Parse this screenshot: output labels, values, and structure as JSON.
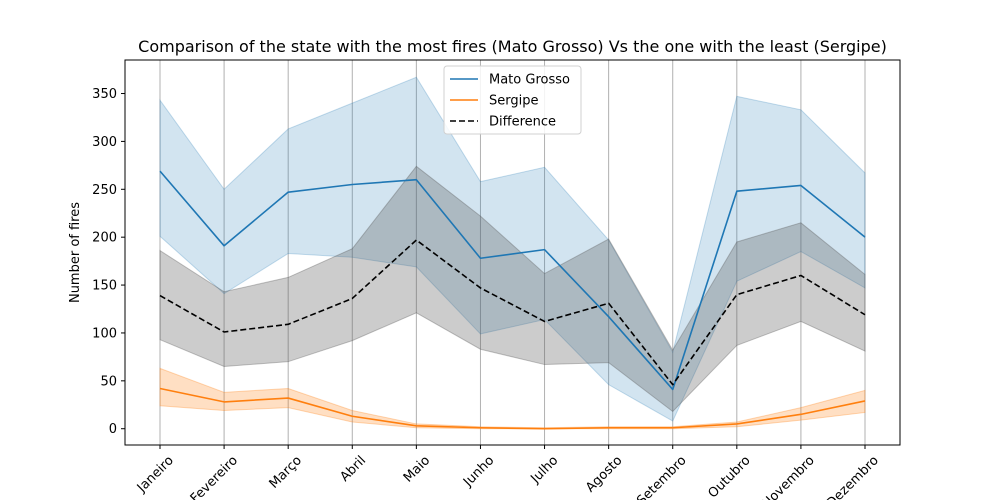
{
  "chart_data": {
    "type": "line",
    "title": "Comparison of the state with the most fires (Mato Grosso) Vs the one with the least (Sergipe)",
    "xlabel": "",
    "ylabel": "Number of fires",
    "ylim": [
      -17,
      385
    ],
    "yticks": [
      0,
      50,
      100,
      150,
      200,
      250,
      300,
      350
    ],
    "grid": "vertical",
    "legend_position": "top-center",
    "categories": [
      "Janeiro",
      "Fevereiro",
      "Março",
      "Abril",
      "Maio",
      "Junho",
      "Julho",
      "Agosto",
      "Setembro",
      "Outubro",
      "Novembro",
      "Dezembro"
    ],
    "series": [
      {
        "name": "Mato Grosso",
        "color": "#1f77b4",
        "style": "solid",
        "values": [
          269,
          191,
          247,
          255,
          260,
          178,
          187,
          117,
          41,
          248,
          254,
          200
        ],
        "band_low": [
          201,
          141,
          183,
          179,
          169,
          99,
          114,
          46,
          8,
          154,
          185,
          147
        ],
        "band_high": [
          343,
          250,
          313,
          340,
          367,
          258,
          273,
          197,
          80,
          347,
          333,
          267
        ]
      },
      {
        "name": "Sergipe",
        "color": "#ff7f0e",
        "style": "solid",
        "values": [
          42,
          28,
          32,
          13,
          3,
          1,
          0,
          1,
          1,
          5,
          15,
          29
        ],
        "band_low": [
          24,
          19,
          22,
          7,
          1,
          0,
          0,
          0,
          0,
          2,
          9,
          17
        ],
        "band_high": [
          63,
          38,
          42,
          19,
          5,
          2,
          1,
          2,
          2,
          7,
          22,
          40
        ]
      },
      {
        "name": "Difference",
        "color": "#000000",
        "style": "dashed",
        "values": [
          139,
          101,
          109,
          136,
          197,
          147,
          112,
          131,
          46,
          140,
          160,
          119
        ],
        "band_low": [
          93,
          65,
          70,
          92,
          121,
          83,
          67,
          69,
          18,
          87,
          112,
          81
        ],
        "band_high": [
          186,
          143,
          158,
          188,
          274,
          222,
          162,
          198,
          82,
          195,
          215,
          161
        ]
      }
    ]
  }
}
